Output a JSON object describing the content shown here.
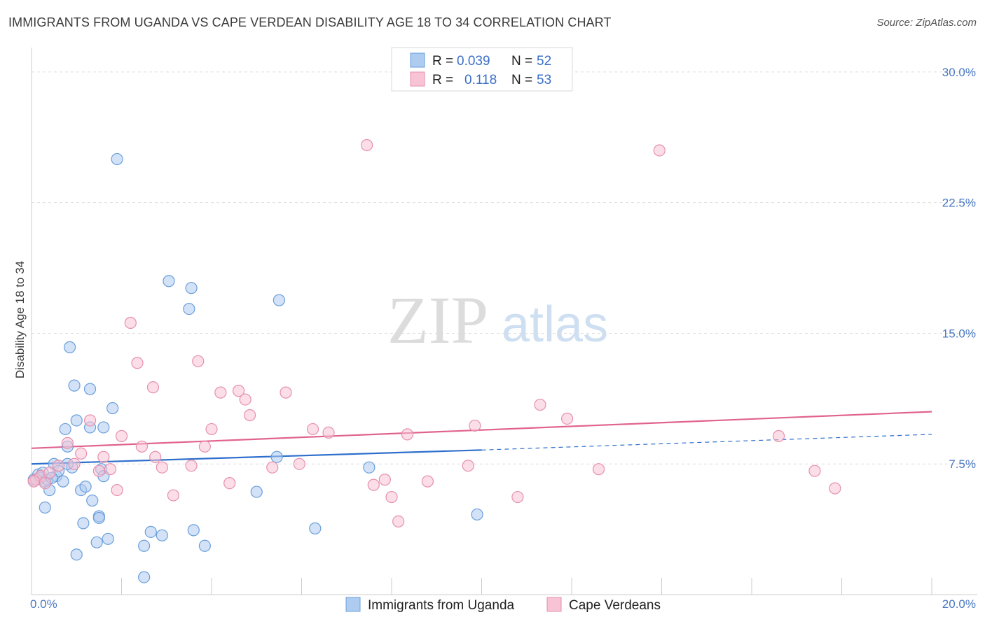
{
  "header": {
    "title": "IMMIGRANTS FROM UGANDA VS CAPE VERDEAN DISABILITY AGE 18 TO 34 CORRELATION CHART",
    "source": "Source: ZipAtlas.com"
  },
  "watermark": {
    "part1": "ZIP",
    "part2": "atlas"
  },
  "legend": {
    "rows": [
      {
        "r_label": "R =",
        "r_value": "0.039",
        "n_label": "N =",
        "n_value": "52"
      },
      {
        "r_label": "R =",
        "r_value": "0.118",
        "n_label": "N =",
        "n_value": "53"
      }
    ]
  },
  "bottom_legend": [
    {
      "label": "Immigrants from Uganda"
    },
    {
      "label": "Cape Verdeans"
    }
  ],
  "colors": {
    "uganda_fill": "#aecbf0",
    "uganda_stroke": "#6a9fdc",
    "uganda_line": "#2f6fcc",
    "cape_fill": "#f8c3d4",
    "cape_stroke": "#e690ad",
    "cape_line": "#e0638f",
    "tick": "#4a78c2",
    "grid": "#dddddd"
  },
  "chart_data": {
    "type": "scatter",
    "title": "IMMIGRANTS FROM UGANDA VS CAPE VERDEAN DISABILITY AGE 18 TO 34 CORRELATION CHART",
    "xlabel": "",
    "ylabel": "Disability Age 18 to 34",
    "xlim": [
      0,
      20
    ],
    "ylim": [
      0,
      31
    ],
    "x_tick_labels": [
      "0.0%",
      "20.0%"
    ],
    "y_ticks": [
      7.5,
      15.0,
      22.5,
      30.0
    ],
    "y_tick_labels": [
      "7.5%",
      "15.0%",
      "22.5%",
      "30.0%"
    ],
    "grid": "horizontal dashed",
    "legend_position": "top-center",
    "series": [
      {
        "name": "Immigrants from Uganda",
        "r": 0.039,
        "n": 52,
        "trend": {
          "x0": 0,
          "y0": 7.5,
          "x1": 10,
          "y1": 8.3,
          "dashed_to_x": 20,
          "dashed_to_y": 9.2
        },
        "points": [
          [
            0.1,
            6.6
          ],
          [
            0.15,
            6.9
          ],
          [
            0.2,
            6.7
          ],
          [
            0.25,
            7.0
          ],
          [
            0.3,
            6.5
          ],
          [
            0.35,
            6.6
          ],
          [
            0.4,
            6.0
          ],
          [
            0.5,
            7.5
          ],
          [
            0.55,
            6.8
          ],
          [
            0.6,
            7.1
          ],
          [
            0.7,
            6.5
          ],
          [
            0.75,
            9.5
          ],
          [
            0.8,
            8.5
          ],
          [
            0.85,
            14.2
          ],
          [
            0.9,
            7.3
          ],
          [
            0.95,
            12.0
          ],
          [
            1.0,
            10.0
          ],
          [
            1.1,
            6.0
          ],
          [
            1.2,
            6.2
          ],
          [
            1.3,
            11.8
          ],
          [
            1.3,
            9.6
          ],
          [
            1.35,
            5.4
          ],
          [
            1.45,
            3.0
          ],
          [
            1.5,
            4.5
          ],
          [
            1.55,
            7.2
          ],
          [
            1.6,
            6.8
          ],
          [
            1.6,
            9.6
          ],
          [
            1.7,
            3.2
          ],
          [
            1.8,
            10.7
          ],
          [
            1.9,
            25.0
          ],
          [
            2.5,
            2.8
          ],
          [
            2.5,
            1.0
          ],
          [
            2.65,
            3.6
          ],
          [
            2.9,
            3.4
          ],
          [
            3.05,
            18.0
          ],
          [
            3.5,
            16.4
          ],
          [
            3.55,
            17.6
          ],
          [
            3.6,
            3.7
          ],
          [
            3.85,
            2.8
          ],
          [
            5.0,
            5.9
          ],
          [
            5.45,
            7.9
          ],
          [
            5.5,
            16.9
          ],
          [
            6.3,
            3.8
          ],
          [
            7.5,
            7.3
          ],
          [
            9.9,
            4.6
          ],
          [
            0.3,
            5.0
          ],
          [
            0.8,
            7.5
          ],
          [
            1.5,
            4.4
          ],
          [
            1.15,
            4.1
          ],
          [
            1.0,
            2.3
          ],
          [
            0.05,
            6.6
          ],
          [
            0.45,
            6.7
          ]
        ]
      },
      {
        "name": "Cape Verdeans",
        "r": 0.118,
        "n": 53,
        "trend": {
          "x0": 0,
          "y0": 8.4,
          "x1": 20,
          "y1": 10.5
        },
        "points": [
          [
            0.1,
            6.6
          ],
          [
            0.2,
            6.8
          ],
          [
            0.3,
            6.4
          ],
          [
            0.4,
            7.0
          ],
          [
            0.6,
            7.4
          ],
          [
            0.8,
            8.7
          ],
          [
            0.95,
            7.5
          ],
          [
            1.1,
            8.1
          ],
          [
            1.3,
            10.0
          ],
          [
            1.5,
            7.1
          ],
          [
            1.6,
            7.9
          ],
          [
            1.75,
            7.2
          ],
          [
            1.9,
            6.0
          ],
          [
            2.0,
            9.1
          ],
          [
            2.2,
            15.6
          ],
          [
            2.35,
            13.3
          ],
          [
            2.45,
            8.5
          ],
          [
            2.7,
            11.9
          ],
          [
            2.75,
            7.9
          ],
          [
            2.9,
            7.3
          ],
          [
            3.15,
            5.7
          ],
          [
            3.55,
            7.4
          ],
          [
            3.7,
            13.4
          ],
          [
            3.85,
            8.5
          ],
          [
            4.0,
            9.5
          ],
          [
            4.2,
            11.6
          ],
          [
            4.4,
            6.4
          ],
          [
            4.6,
            11.7
          ],
          [
            4.75,
            11.2
          ],
          [
            4.85,
            10.3
          ],
          [
            5.35,
            7.3
          ],
          [
            5.65,
            11.6
          ],
          [
            5.95,
            7.5
          ],
          [
            6.25,
            9.5
          ],
          [
            6.6,
            9.3
          ],
          [
            7.45,
            25.8
          ],
          [
            7.6,
            6.3
          ],
          [
            7.85,
            6.6
          ],
          [
            8.0,
            5.6
          ],
          [
            8.15,
            4.2
          ],
          [
            8.35,
            9.2
          ],
          [
            8.8,
            6.5
          ],
          [
            9.7,
            7.4
          ],
          [
            9.85,
            9.7
          ],
          [
            10.8,
            5.6
          ],
          [
            11.3,
            10.9
          ],
          [
            11.9,
            10.1
          ],
          [
            12.6,
            7.2
          ],
          [
            13.95,
            25.5
          ],
          [
            16.6,
            9.1
          ],
          [
            17.4,
            7.1
          ],
          [
            17.85,
            6.1
          ],
          [
            0.05,
            6.5
          ]
        ]
      }
    ]
  }
}
